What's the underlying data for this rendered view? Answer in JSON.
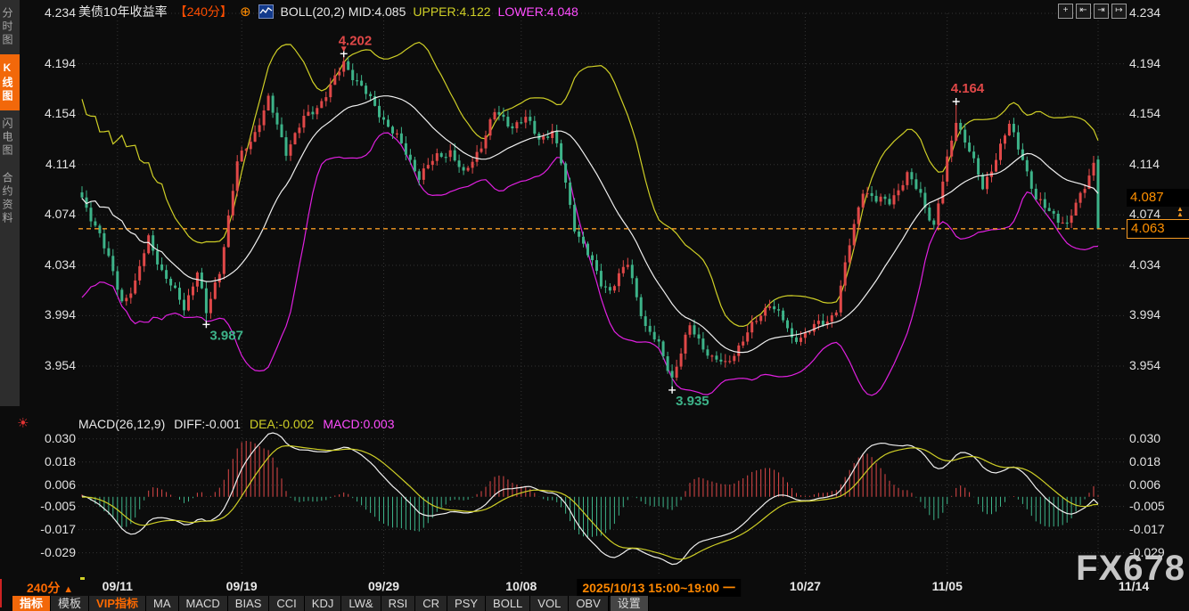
{
  "app_title": "美债10年收益率 240分 K线图",
  "colors": {
    "up": "#e04848",
    "down": "#3db389",
    "boll_upper": "#cfcf26",
    "boll_mid": "#f0f0f0",
    "boll_lower": "#e020e0",
    "diff_line": "#f0f0f0",
    "dea_line": "#cfcf26",
    "hist_pos": "#e04848",
    "hist_neg": "#3db389",
    "accent": "#ff6a00",
    "price_line": "#f59a23",
    "grid": "#343434",
    "annotation_red": "#e04848",
    "annotation_green": "#3db389",
    "cross": "#ffffff"
  },
  "sidebar": {
    "tabs": [
      {
        "label": "分时图",
        "active": false
      },
      {
        "label": "K线图",
        "active": true
      },
      {
        "label": "闪电图",
        "active": false
      },
      {
        "label": "合约资料",
        "active": false
      }
    ]
  },
  "header": {
    "symbol": "美债10年收益率",
    "period": "【240分】",
    "add_icon": "⊕",
    "boll_label": "BOLL(20,2) MID:4.085",
    "upper_label": "UPPER:4.122",
    "lower_label": "LOWER:4.048",
    "window_icons": [
      {
        "name": "crosshair-icon",
        "glyph": "+"
      },
      {
        "name": "compress-x-icon",
        "glyph": "⇤"
      },
      {
        "name": "expand-x-icon",
        "glyph": "⇥"
      },
      {
        "name": "shift-right-icon",
        "glyph": "↦"
      }
    ]
  },
  "macd_header": {
    "title": "MACD(26,12,9)",
    "diff": "DIFF:-0.001",
    "dea": "DEA:-0.002",
    "macd": "MACD:0.003",
    "sun_icon": "☀"
  },
  "price_tags": [
    {
      "label": "4.087",
      "price": 4.087,
      "style": "solid"
    },
    {
      "label": "4.063",
      "price": 4.063,
      "style": "outline",
      "arrow_icon": "▲▲"
    }
  ],
  "status": {
    "period": "240分",
    "arrow": "▲"
  },
  "toolbar": {
    "items": [
      {
        "label": "指标",
        "style": "active"
      },
      {
        "label": "模板",
        "style": ""
      },
      {
        "label": "VIP指标",
        "style": "vip"
      },
      {
        "label": "MA",
        "style": ""
      },
      {
        "label": "MACD",
        "style": ""
      },
      {
        "label": "BIAS",
        "style": ""
      },
      {
        "label": "CCI",
        "style": ""
      },
      {
        "label": "KDJ",
        "style": ""
      },
      {
        "label": "LW&",
        "style": ""
      },
      {
        "label": "RSI",
        "style": ""
      },
      {
        "label": "CR",
        "style": ""
      },
      {
        "label": "PSY",
        "style": ""
      },
      {
        "label": "BOLL",
        "style": ""
      },
      {
        "label": "VOL",
        "style": ""
      },
      {
        "label": "OBV",
        "style": ""
      },
      {
        "label": "设置",
        "style": "settings"
      }
    ]
  },
  "watermark": "FX678",
  "chart_data": {
    "type": "candlestick",
    "symbol": "美债10年收益率",
    "interval": "240分",
    "n_candles": 230,
    "price_axis": {
      "ticks": [
        {
          "label": "4.234",
          "value": 4.234
        },
        {
          "label": "4.194",
          "value": 4.194
        },
        {
          "label": "4.154",
          "value": 4.154
        },
        {
          "label": "4.114",
          "value": 4.114
        },
        {
          "label": "4.074",
          "value": 4.074
        },
        {
          "label": "4.034",
          "value": 4.034
        },
        {
          "label": "3.994",
          "value": 3.994
        },
        {
          "label": "3.954",
          "value": 3.954
        }
      ]
    },
    "macd_axis": {
      "ticks": [
        {
          "label": "0.030",
          "value": 0.03
        },
        {
          "label": "0.018",
          "value": 0.018
        },
        {
          "label": "0.006",
          "value": 0.006
        },
        {
          "label": "-0.005",
          "value": -0.005
        },
        {
          "label": "-0.017",
          "value": -0.017
        },
        {
          "label": "-0.029",
          "value": -0.029
        }
      ]
    },
    "x_ticks": [
      {
        "label": "09/11",
        "index": 8
      },
      {
        "label": "09/19",
        "index": 36
      },
      {
        "label": "09/29",
        "index": 68
      },
      {
        "label": "10/08",
        "index": 99
      },
      {
        "label": "2025/10/13 15:00~19:00 一",
        "index": 130,
        "highlight": true
      },
      {
        "label": "10/27",
        "index": 163
      },
      {
        "label": "11/05",
        "index": 195
      },
      {
        "label": "11/14",
        "index": 229,
        "label_x": 1272
      }
    ],
    "boll_params": {
      "period": 20,
      "mult": 2,
      "mid": 4.085,
      "upper": 4.122,
      "lower": 4.048
    },
    "macd_params": {
      "slow": 26,
      "fast": 12,
      "signal": 9,
      "diff": -0.001,
      "dea": -0.002,
      "macd": 0.003
    },
    "current_price_line": 4.063,
    "last_price": 4.063,
    "marked_points": [
      {
        "index": 59,
        "price": 4.202,
        "label": "4.202",
        "side": "above",
        "color": "red",
        "arrow": true
      },
      {
        "index": 28,
        "price": 3.987,
        "label": "3.987",
        "side": "below",
        "color": "green"
      },
      {
        "index": 133,
        "price": 3.935,
        "label": "3.935",
        "side": "below",
        "color": "green"
      },
      {
        "index": 197,
        "price": 4.164,
        "label": "4.164",
        "side": "above",
        "color": "red"
      }
    ],
    "close_keyframes": [
      [
        0,
        4.085
      ],
      [
        4,
        4.06
      ],
      [
        9,
        4.005
      ],
      [
        12,
        4.02
      ],
      [
        15,
        4.055
      ],
      [
        18,
        4.03
      ],
      [
        23,
        4.0
      ],
      [
        26,
        4.03
      ],
      [
        28,
        3.995
      ],
      [
        31,
        4.03
      ],
      [
        35,
        4.115
      ],
      [
        39,
        4.14
      ],
      [
        42,
        4.165
      ],
      [
        46,
        4.125
      ],
      [
        50,
        4.15
      ],
      [
        53,
        4.16
      ],
      [
        56,
        4.175
      ],
      [
        59,
        4.195
      ],
      [
        61,
        4.185
      ],
      [
        63,
        4.175
      ],
      [
        67,
        4.155
      ],
      [
        71,
        4.135
      ],
      [
        76,
        4.105
      ],
      [
        80,
        4.12
      ],
      [
        83,
        4.125
      ],
      [
        86,
        4.105
      ],
      [
        90,
        4.13
      ],
      [
        93,
        4.155
      ],
      [
        97,
        4.145
      ],
      [
        100,
        4.15
      ],
      [
        103,
        4.135
      ],
      [
        106,
        4.14
      ],
      [
        108,
        4.115
      ],
      [
        111,
        4.065
      ],
      [
        113,
        4.05
      ],
      [
        115,
        4.035
      ],
      [
        117,
        4.02
      ],
      [
        119,
        4.015
      ],
      [
        121,
        4.025
      ],
      [
        123,
        4.035
      ],
      [
        125,
        4.01
      ],
      [
        127,
        3.985
      ],
      [
        130,
        3.97
      ],
      [
        133,
        3.945
      ],
      [
        135,
        3.965
      ],
      [
        137,
        3.985
      ],
      [
        139,
        3.975
      ],
      [
        142,
        3.96
      ],
      [
        145,
        3.955
      ],
      [
        148,
        3.97
      ],
      [
        150,
        3.98
      ],
      [
        153,
        3.995
      ],
      [
        155,
        4.005
      ],
      [
        158,
        3.99
      ],
      [
        160,
        3.975
      ],
      [
        163,
        3.98
      ],
      [
        165,
        3.985
      ],
      [
        168,
        3.99
      ],
      [
        170,
        4.0
      ],
      [
        173,
        4.05
      ],
      [
        176,
        4.095
      ],
      [
        179,
        4.085
      ],
      [
        182,
        4.085
      ],
      [
        184,
        4.095
      ],
      [
        186,
        4.105
      ],
      [
        189,
        4.09
      ],
      [
        192,
        4.065
      ],
      [
        194,
        4.1
      ],
      [
        197,
        4.15
      ],
      [
        200,
        4.125
      ],
      [
        203,
        4.095
      ],
      [
        206,
        4.12
      ],
      [
        209,
        4.145
      ],
      [
        212,
        4.12
      ],
      [
        215,
        4.085
      ],
      [
        217,
        4.08
      ],
      [
        219,
        4.075
      ],
      [
        222,
        4.065
      ],
      [
        225,
        4.09
      ],
      [
        228,
        4.115
      ],
      [
        229,
        4.063
      ]
    ],
    "candle_overrides": {
      "28": {
        "l": 3.987
      },
      "59": {
        "h": 4.202
      },
      "133": {
        "l": 3.935
      },
      "197": {
        "h": 4.164
      },
      "229": {
        "o": 4.118,
        "h": 4.121,
        "l": 4.063,
        "c": 4.063
      }
    }
  }
}
